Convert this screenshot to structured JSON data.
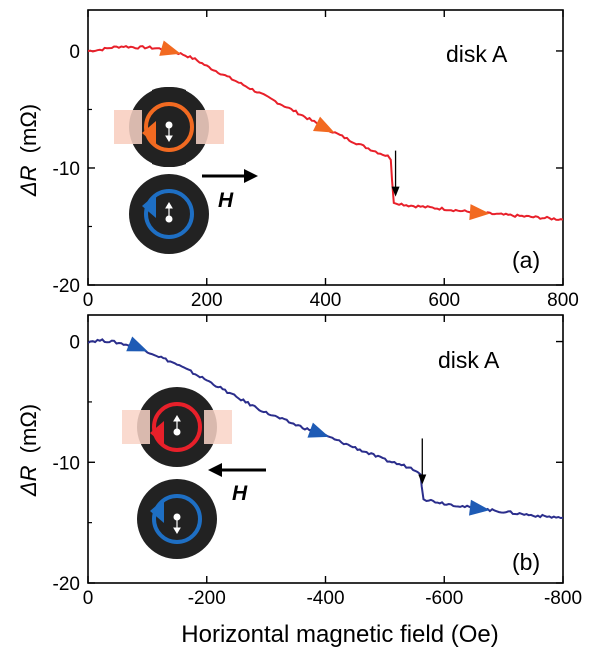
{
  "chart_data": [
    {
      "type": "line",
      "panel_label": "(a)",
      "annotation": "disk A",
      "field_arrow_label": "H",
      "field_arrow_direction": "right",
      "ylabel_prefix": "ΔR",
      "ylabel_italic": "R",
      "ylabel_unit": "(mΩ)",
      "xlim": [
        0,
        800
      ],
      "ylim": [
        -20,
        3.5
      ],
      "xticks": [
        0,
        200,
        400,
        600,
        800
      ],
      "xtick_labels": [
        "0",
        "200",
        "400",
        "600",
        "800"
      ],
      "yticks": [
        0,
        -10,
        -20
      ],
      "ytick_labels": [
        "0",
        "-10",
        "-20"
      ],
      "series": [
        {
          "color": "#e8202a",
          "x": [
            0,
            20,
            40,
            60,
            80,
            100,
            120,
            140,
            160,
            180,
            200,
            250,
            300,
            350,
            400,
            440,
            480,
            505,
            510,
            512,
            515,
            520,
            540,
            560,
            600,
            650,
            700,
            750,
            800
          ],
          "y": [
            0,
            0.1,
            0.3,
            0.4,
            0.3,
            0.3,
            0.2,
            0.0,
            -0.3,
            -0.7,
            -1.3,
            -2.6,
            -3.9,
            -5.2,
            -6.6,
            -7.6,
            -8.5,
            -9.0,
            -9.3,
            -11.0,
            -12.9,
            -13.0,
            -13.2,
            -13.3,
            -13.5,
            -13.8,
            -14.0,
            -14.2,
            -14.4
          ]
        }
      ],
      "direction_markers": {
        "color": "#f26a21",
        "x": [
          140,
          400,
          660
        ]
      },
      "event_marker_x": 518,
      "insets": [
        {
          "ring_color": "#f26a21",
          "stripe_color": "#f9d4c7",
          "core_arrow": "down"
        },
        {
          "ring_color": "#1e6fc4",
          "core_arrow": "up"
        }
      ]
    },
    {
      "type": "line",
      "panel_label": "(b)",
      "annotation": "disk A",
      "field_arrow_label": "H",
      "field_arrow_direction": "left",
      "ylabel_prefix": "ΔR",
      "ylabel_italic": "R",
      "ylabel_unit": "(mΩ)",
      "xlabel": "Horizontal magnetic field (Oe)",
      "xlim": [
        0,
        -800
      ],
      "ylim": [
        -20,
        2.2
      ],
      "xticks": [
        0,
        -200,
        -400,
        -600,
        -800
      ],
      "xtick_labels": [
        "0",
        "-200",
        "-400",
        "-600",
        "-800"
      ],
      "yticks": [
        0,
        -10,
        -20
      ],
      "ytick_labels": [
        "0",
        "-10",
        "-20"
      ],
      "series": [
        {
          "color": "#2b2e8c",
          "x": [
            0,
            -20,
            -40,
            -60,
            -80,
            -100,
            -150,
            -200,
            -250,
            -300,
            -350,
            -400,
            -450,
            -500,
            -540,
            -555,
            -560,
            -562,
            -565,
            -570,
            -600,
            -650,
            -700,
            -750,
            -800
          ],
          "y": [
            0,
            0.1,
            0.0,
            -0.2,
            -0.4,
            -0.8,
            -1.9,
            -3.2,
            -4.6,
            -5.9,
            -6.9,
            -7.8,
            -8.8,
            -9.8,
            -10.4,
            -10.7,
            -11.0,
            -12.0,
            -13.0,
            -13.1,
            -13.4,
            -13.8,
            -14.1,
            -14.4,
            -14.6
          ]
        }
      ],
      "direction_markers": {
        "color": "#1e5bb5",
        "x": [
          -85,
          -390,
          -660
        ]
      },
      "event_marker_x": -563,
      "insets": [
        {
          "ring_color": "#e8202a",
          "stripe_color": "#f9d4c7",
          "core_arrow": "up"
        },
        {
          "ring_color": "#1e6fc4",
          "core_arrow": "down"
        }
      ]
    }
  ]
}
